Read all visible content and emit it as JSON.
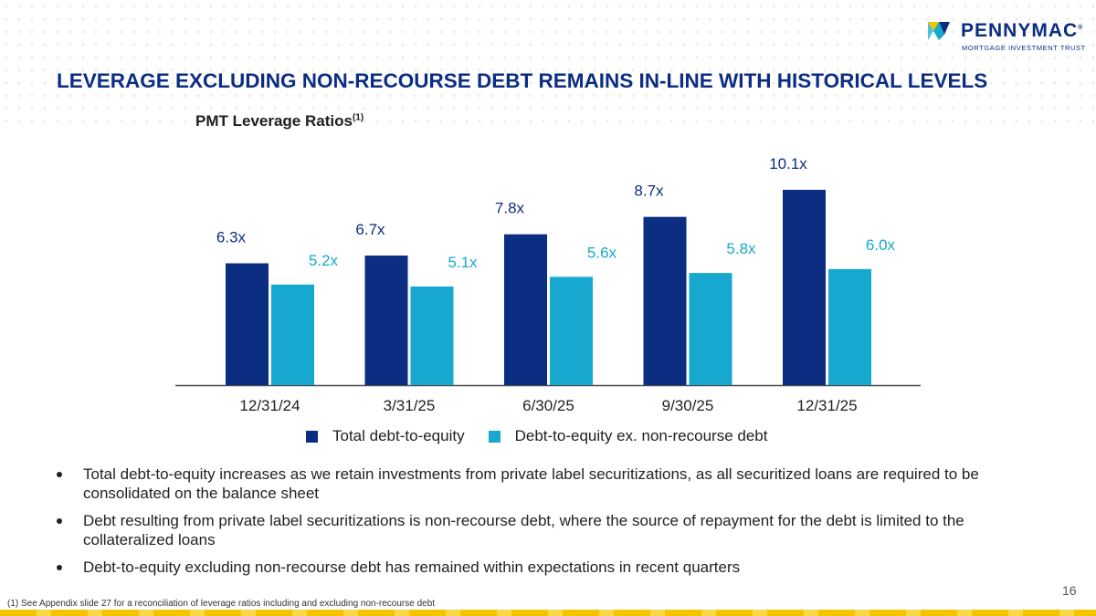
{
  "header": {
    "logo_name": "PENNYMAC",
    "logo_registered": "®",
    "logo_tagline": "MORTGAGE INVESTMENT TRUST",
    "title": "LEVERAGE EXCLUDING NON-RECOURSE DEBT REMAINS IN-LINE WITH HISTORICAL LEVELS"
  },
  "colors": {
    "brand_navy": "#0b2d82",
    "accent_cyan": "#17a8d0",
    "accent_yellow": "#f5c400"
  },
  "chart_data": {
    "type": "bar",
    "title": "PMT Leverage Ratios",
    "title_footnote_marker": "(1)",
    "categories": [
      "12/31/24",
      "3/31/25",
      "6/30/25",
      "9/30/25",
      "12/31/25"
    ],
    "series": [
      {
        "name": "Total debt-to-equity",
        "color": "#0b2d82",
        "values": [
          6.3,
          6.7,
          7.8,
          8.7,
          10.1
        ],
        "labels": [
          "6.3x",
          "6.7x",
          "7.8x",
          "8.7x",
          "10.1x"
        ]
      },
      {
        "name": "Debt-to-equity ex. non-recourse debt",
        "color": "#17a8d0",
        "values": [
          5.2,
          5.1,
          5.6,
          5.8,
          6.0
        ],
        "labels": [
          "5.2x",
          "5.1x",
          "5.6x",
          "5.8x",
          "6.0x"
        ]
      }
    ],
    "xlabel": "",
    "ylabel": "",
    "ylim": [
      0,
      10.1
    ],
    "grid": false,
    "legend_position": "bottom"
  },
  "bullets": [
    "Total debt-to-equity increases as we retain investments from private label securitizations, as all securitized loans are required to be consolidated on the balance sheet",
    "Debt resulting from private label securitizations is non-recourse debt, where the source of repayment for the debt is limited to the collateralized loans",
    "Debt-to-equity excluding non-recourse debt has remained within expectations in recent quarters"
  ],
  "page_number": "16",
  "footnote": "(1) See Appendix slide 27 for a reconciliation of leverage ratios including and excluding non-recourse debt"
}
